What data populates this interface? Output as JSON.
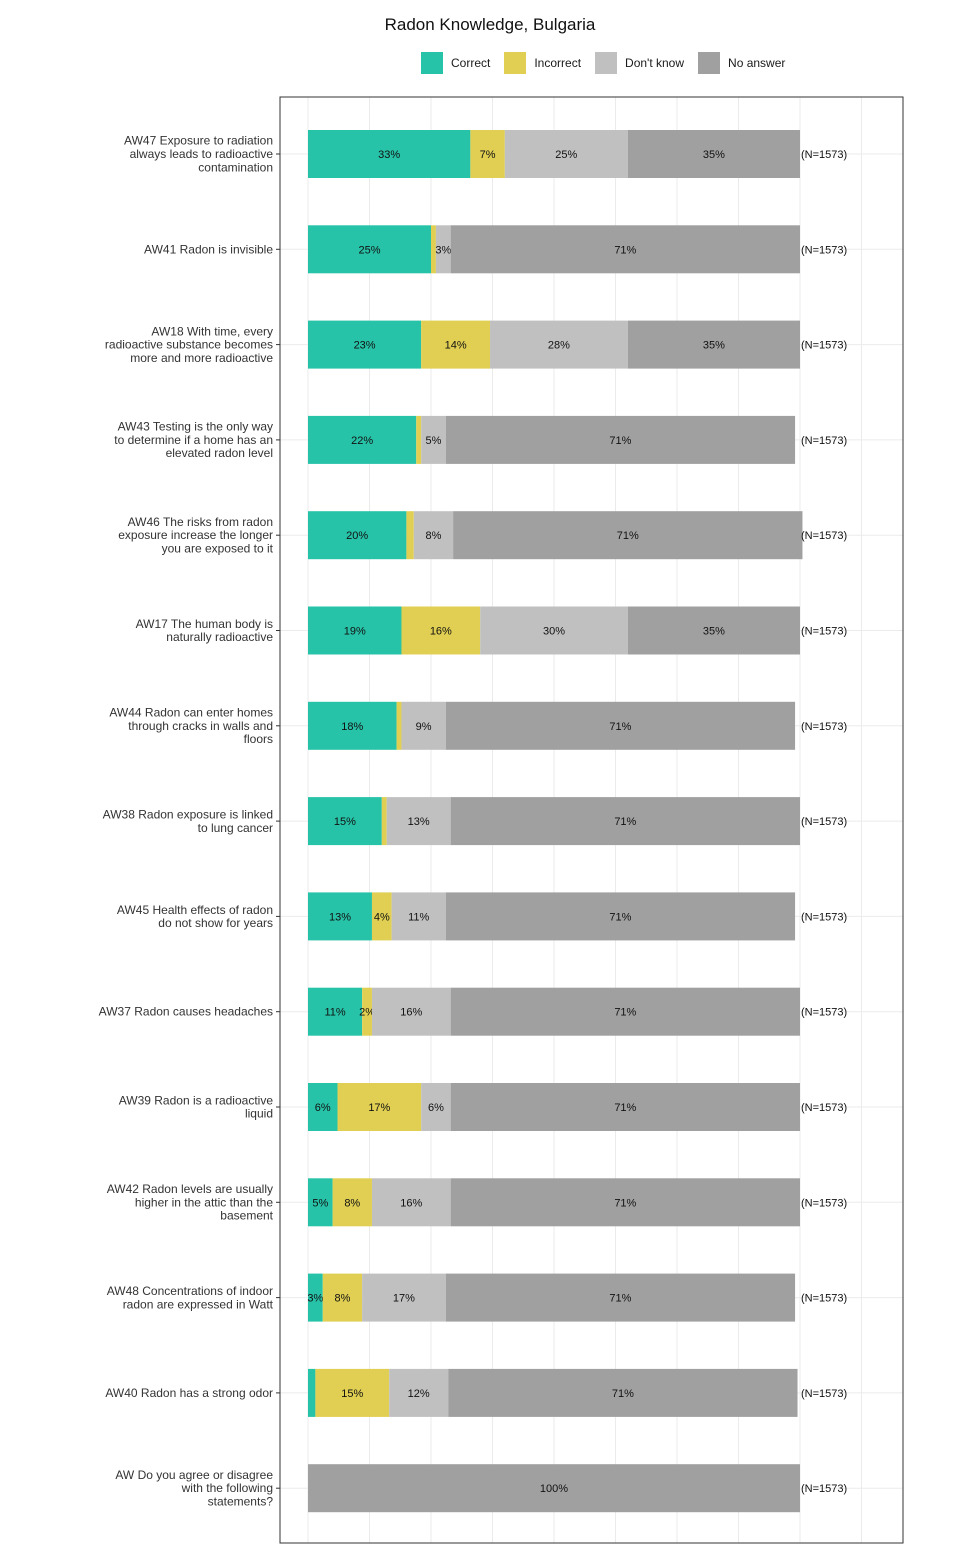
{
  "chart_data": {
    "type": "bar",
    "orientation": "horizontal",
    "stacked": true,
    "title": "Radon Knowledge, Bulgaria",
    "xlabel": "",
    "ylabel": "",
    "xlim": [
      0,
      100
    ],
    "grid": true,
    "legend_position": "top",
    "legend": [
      {
        "name": "Correct",
        "color": "#27c3a8"
      },
      {
        "name": "Incorrect",
        "color": "#e0cf52"
      },
      {
        "name": "Don't know",
        "color": "#c0c0c0"
      },
      {
        "name": "No answer",
        "color": "#a0a0a0"
      }
    ],
    "rows": [
      {
        "label": "AW47 Exposure to radiation always leads to radioactive contamination",
        "label_lines": [
          "AW47 Exposure to radiation",
          "always leads to radioactive",
          "contamination"
        ],
        "values": [
          33,
          7,
          25,
          35
        ],
        "value_labels": [
          "33%",
          "7%",
          "25%",
          "35%"
        ],
        "n_label": "(N=1573)"
      },
      {
        "label": "AW41 Radon is invisible",
        "label_lines": [
          "AW41 Radon is invisible"
        ],
        "values": [
          25,
          1,
          3,
          71
        ],
        "value_labels": [
          "25%",
          "",
          "3%",
          "71%"
        ],
        "n_label": "(N=1573)"
      },
      {
        "label": "AW18 With time, every radioactive substance becomes more and more radioactive",
        "label_lines": [
          "AW18 With time, every",
          "radioactive substance becomes",
          "more and more radioactive"
        ],
        "values": [
          23,
          14,
          28,
          35
        ],
        "value_labels": [
          "23%",
          "14%",
          "28%",
          "35%"
        ],
        "n_label": "(N=1573)"
      },
      {
        "label": "AW43 Testing is the only way to determine if a home has an elevated radon level",
        "label_lines": [
          "AW43 Testing is the only way",
          "to determine if a home has an",
          "elevated radon level"
        ],
        "values": [
          22,
          1,
          5,
          71
        ],
        "value_labels": [
          "22%",
          "",
          "5%",
          "71%"
        ],
        "n_label": "(N=1573)"
      },
      {
        "label": "AW46 The risks from radon exposure increase the longer you are exposed to it",
        "label_lines": [
          "AW46 The risks from radon",
          "exposure increase the longer",
          "you are exposed to it"
        ],
        "values": [
          20,
          1.5,
          8,
          71
        ],
        "value_labels": [
          "20%",
          "",
          "8%",
          "71%"
        ],
        "n_label": "(N=1573)"
      },
      {
        "label": "AW17 The human body is naturally radioactive",
        "label_lines": [
          "AW17 The human body is",
          "naturally radioactive"
        ],
        "values": [
          19,
          16,
          30,
          35
        ],
        "value_labels": [
          "19%",
          "16%",
          "30%",
          "35%"
        ],
        "n_label": "(N=1573)"
      },
      {
        "label": "AW44 Radon can enter homes through cracks in walls and floors",
        "label_lines": [
          "AW44 Radon can enter homes",
          "through cracks in walls and",
          "floors"
        ],
        "values": [
          18,
          1,
          9,
          71
        ],
        "value_labels": [
          "18%",
          "",
          "9%",
          "71%"
        ],
        "n_label": "(N=1573)"
      },
      {
        "label": "AW38 Radon exposure is linked to lung cancer",
        "label_lines": [
          "AW38 Radon exposure is linked",
          "to lung cancer"
        ],
        "values": [
          15,
          1,
          13,
          71
        ],
        "value_labels": [
          "15%",
          "",
          "13%",
          "71%"
        ],
        "n_label": "(N=1573)"
      },
      {
        "label": "AW45 Health effects of radon do not show for years",
        "label_lines": [
          "AW45 Health effects of radon",
          "do not show for years"
        ],
        "values": [
          13,
          4,
          11,
          71
        ],
        "value_labels": [
          "13%",
          "4%",
          "11%",
          "71%"
        ],
        "n_label": "(N=1573)"
      },
      {
        "label": "AW37 Radon causes headaches",
        "label_lines": [
          "AW37 Radon causes headaches"
        ],
        "values": [
          11,
          2,
          16,
          71
        ],
        "value_labels": [
          "11%",
          "2%",
          "16%",
          "71%"
        ],
        "n_label": "(N=1573)"
      },
      {
        "label": "AW39 Radon is a radioactive liquid",
        "label_lines": [
          "AW39 Radon is a radioactive",
          "liquid"
        ],
        "values": [
          6,
          17,
          6,
          71
        ],
        "value_labels": [
          "6%",
          "17%",
          "6%",
          "71%"
        ],
        "n_label": "(N=1573)"
      },
      {
        "label": "AW42 Radon levels are usually higher in the attic than the basement",
        "label_lines": [
          "AW42 Radon levels are usually",
          "higher in the attic than the",
          "basement"
        ],
        "values": [
          5,
          8,
          16,
          71
        ],
        "value_labels": [
          "5%",
          "8%",
          "16%",
          "71%"
        ],
        "n_label": "(N=1573)"
      },
      {
        "label": "AW48 Concentrations of indoor radon are expressed in Watt",
        "label_lines": [
          "AW48 Concentrations of indoor",
          "radon are expressed in Watt"
        ],
        "values": [
          3,
          8,
          17,
          71
        ],
        "value_labels": [
          "3%",
          "8%",
          "17%",
          "71%"
        ],
        "n_label": "(N=1573)"
      },
      {
        "label": "AW40 Radon has a strong odor",
        "label_lines": [
          "AW40 Radon has a strong odor"
        ],
        "values": [
          1.5,
          15,
          12,
          71
        ],
        "value_labels": [
          "",
          "15%",
          "12%",
          "71%"
        ],
        "n_label": "(N=1573)"
      },
      {
        "label": "AW Do you agree or disagree with the following statements?",
        "label_lines": [
          "AW Do you agree or disagree",
          "with the following",
          "statements?"
        ],
        "values": [
          0,
          0,
          0,
          100
        ],
        "value_labels": [
          "",
          "",
          "",
          "100%"
        ],
        "n_label": "(N=1573)"
      }
    ]
  }
}
